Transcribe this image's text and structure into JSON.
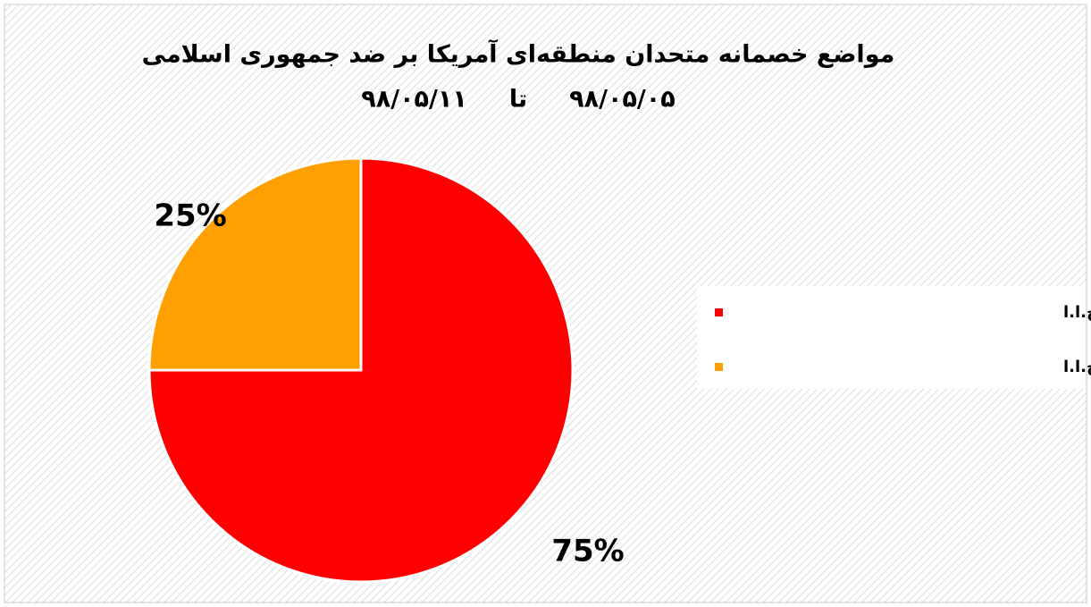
{
  "chart_data": {
    "type": "pie",
    "title": "مواضع خصمانه متحدان منطقه‌ای آمریکا بر ضد جمهوری اسلامی",
    "subtitle": "۹۸/۰۵/۰۵     تا     ۹۸/۰۵/۱۱",
    "categories": [
      "ادعای متحدان اروپایی آمریکا در قبال ج.ا.ا",
      "ادعای متحدان منطقه‌ای آمریکا در قبال ج.ا.ا"
    ],
    "values": [
      75,
      25
    ],
    "value_labels": [
      "75%",
      "25%"
    ],
    "colors": [
      "#ff0000",
      "#ffa000"
    ],
    "legend": "right"
  }
}
